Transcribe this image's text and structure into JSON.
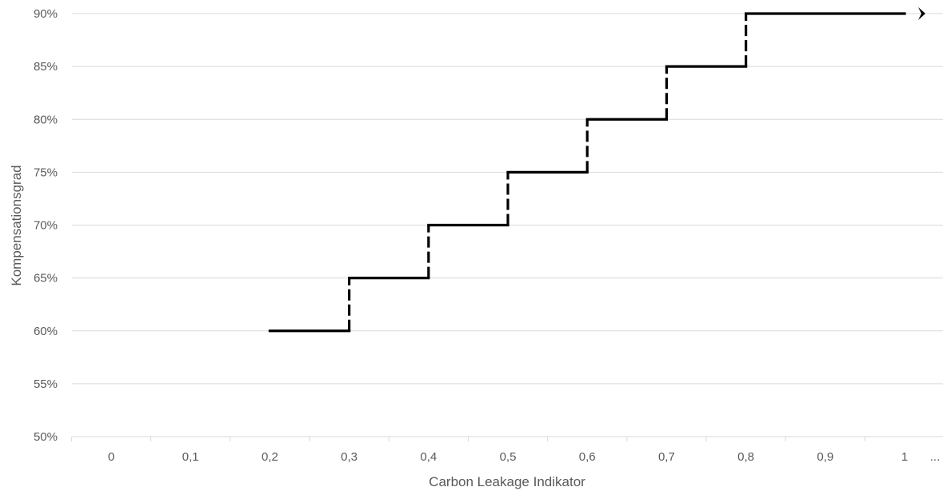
{
  "chart_data": {
    "type": "line",
    "title": "",
    "xlabel": "Carbon Leakage Indikator",
    "ylabel": "Kompensationsgrad",
    "x_categories": [
      "0",
      "0,1",
      "0,2",
      "0,3",
      "0,4",
      "0,5",
      "0,6",
      "0,7",
      "0,8",
      "0,9",
      "1"
    ],
    "x_ellipsis": "...",
    "xlim": [
      0,
      1
    ],
    "ylim": [
      50,
      90
    ],
    "y_ticks": [
      50,
      55,
      60,
      65,
      70,
      75,
      80,
      85,
      90
    ],
    "y_tick_labels": [
      "50%",
      "55%",
      "60%",
      "65%",
      "70%",
      "75%",
      "80%",
      "85%",
      "90%"
    ],
    "grid": true,
    "legend": "none",
    "arrow_symbol": "›",
    "line_color": "#000000",
    "grid_color": "#d9d9d9",
    "text_color": "#595959",
    "steps": [
      {
        "x_start": 0.2,
        "x_end": 0.3,
        "y": 60
      },
      {
        "x_start": 0.3,
        "x_end": 0.4,
        "y": 65
      },
      {
        "x_start": 0.4,
        "x_end": 0.5,
        "y": 70
      },
      {
        "x_start": 0.5,
        "x_end": 0.6,
        "y": 75
      },
      {
        "x_start": 0.6,
        "x_end": 0.7,
        "y": 80
      },
      {
        "x_start": 0.7,
        "x_end": 0.8,
        "y": 85
      },
      {
        "x_start": 0.8,
        "x_end": 1.0,
        "y": 90
      }
    ]
  }
}
